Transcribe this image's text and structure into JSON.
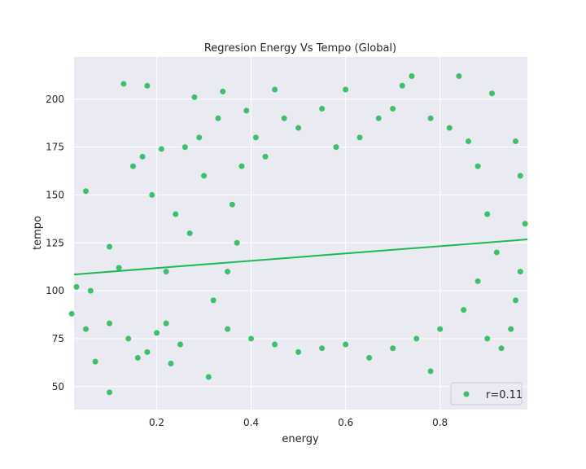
{
  "chart_data": {
    "type": "scatter",
    "title": "Regresion Energy Vs Tempo (Global)",
    "xlabel": "energy",
    "ylabel": "tempo",
    "xlim": [
      0.025,
      0.985
    ],
    "ylim": [
      38,
      222
    ],
    "xticks": [
      0.2,
      0.4,
      0.6,
      0.8
    ],
    "xtick_labels": [
      "0.2",
      "0.4",
      "0.6",
      "0.8"
    ],
    "yticks": [
      50,
      75,
      100,
      125,
      150,
      175,
      200
    ],
    "ytick_labels": [
      "50",
      "75",
      "100",
      "125",
      "150",
      "175",
      "200"
    ],
    "grid": true,
    "legend": {
      "placement": "bottom-right",
      "entries": [
        "r=0.11"
      ]
    },
    "colors": {
      "points": "#1db954",
      "background": "#eaeaf2",
      "grid": "#ffffff"
    },
    "regression": {
      "x": [
        0.025,
        0.985
      ],
      "y": [
        108.5,
        126.8
      ]
    },
    "series": [
      {
        "name": "r=0.11",
        "points": [
          [
            0.13,
            208
          ],
          [
            0.18,
            207
          ],
          [
            0.34,
            204
          ],
          [
            0.45,
            205
          ],
          [
            0.6,
            205
          ],
          [
            0.72,
            207
          ],
          [
            0.74,
            212
          ],
          [
            0.84,
            212
          ],
          [
            0.91,
            203
          ],
          [
            0.15,
            165
          ],
          [
            0.17,
            170
          ],
          [
            0.21,
            174
          ],
          [
            0.05,
            152
          ],
          [
            0.1,
            123
          ],
          [
            0.12,
            112
          ],
          [
            0.03,
            102
          ],
          [
            0.06,
            100
          ],
          [
            0.02,
            88
          ],
          [
            0.1,
            47
          ],
          [
            0.31,
            55
          ],
          [
            0.78,
            58
          ],
          [
            0.07,
            63
          ],
          [
            0.05,
            80
          ],
          [
            0.1,
            83
          ],
          [
            0.14,
            75
          ],
          [
            0.16,
            65
          ],
          [
            0.18,
            68
          ],
          [
            0.23,
            62
          ],
          [
            0.25,
            72
          ],
          [
            0.28,
            201
          ],
          [
            0.33,
            190
          ],
          [
            0.39,
            194
          ],
          [
            0.2,
            78
          ],
          [
            0.22,
            83
          ],
          [
            0.96,
            178
          ],
          [
            0.97,
            160
          ],
          [
            0.98,
            135
          ],
          [
            0.97,
            110
          ],
          [
            0.96,
            95
          ],
          [
            0.95,
            80
          ],
          [
            0.93,
            70
          ],
          [
            0.9,
            75
          ],
          [
            0.22,
            110
          ],
          [
            0.24,
            140
          ],
          [
            0.19,
            150
          ],
          [
            0.26,
            175
          ],
          [
            0.29,
            180
          ],
          [
            0.3,
            160
          ],
          [
            0.27,
            130
          ],
          [
            0.32,
            95
          ],
          [
            0.35,
            110
          ],
          [
            0.37,
            125
          ],
          [
            0.36,
            145
          ],
          [
            0.38,
            165
          ],
          [
            0.41,
            180
          ],
          [
            0.43,
            170
          ],
          [
            0.47,
            190
          ],
          [
            0.5,
            185
          ],
          [
            0.55,
            195
          ],
          [
            0.58,
            175
          ],
          [
            0.63,
            180
          ],
          [
            0.67,
            190
          ],
          [
            0.7,
            195
          ],
          [
            0.78,
            190
          ],
          [
            0.82,
            185
          ],
          [
            0.86,
            178
          ],
          [
            0.88,
            165
          ],
          [
            0.9,
            140
          ],
          [
            0.92,
            120
          ],
          [
            0.88,
            105
          ],
          [
            0.85,
            90
          ],
          [
            0.8,
            80
          ],
          [
            0.75,
            75
          ],
          [
            0.7,
            70
          ],
          [
            0.65,
            65
          ],
          [
            0.6,
            72
          ],
          [
            0.55,
            70
          ],
          [
            0.5,
            68
          ],
          [
            0.45,
            72
          ],
          [
            0.4,
            75
          ],
          [
            0.35,
            80
          ]
        ]
      }
    ]
  }
}
